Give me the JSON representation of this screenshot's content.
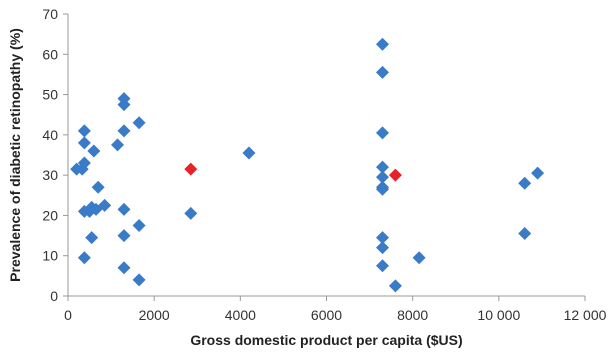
{
  "chart_data": {
    "type": "scatter",
    "title": "",
    "xlabel": "Gross domestic product per capita ($US)",
    "ylabel": "Prevalence of diabetic retinopathy (%)",
    "xlim": [
      0,
      12000
    ],
    "ylim": [
      0,
      70
    ],
    "x_ticks": [
      0,
      2000,
      4000,
      6000,
      8000,
      10000,
      12000
    ],
    "x_tick_labels": [
      "0",
      "2000",
      "4000",
      "6000",
      "8000",
      "10 000",
      "12 000"
    ],
    "y_ticks": [
      0,
      10,
      20,
      30,
      40,
      50,
      60,
      70
    ],
    "y_tick_labels": [
      "0",
      "10",
      "20",
      "30",
      "40",
      "50",
      "60",
      "70"
    ],
    "grid": false,
    "legend": "none",
    "series": [
      {
        "color": "#3a7bc8",
        "marker": "diamond",
        "points": [
          [
            200,
            31.5
          ],
          [
            330,
            31.5
          ],
          [
            380,
            33
          ],
          [
            380,
            38
          ],
          [
            380,
            41
          ],
          [
            380,
            21
          ],
          [
            380,
            9.5
          ],
          [
            500,
            21
          ],
          [
            550,
            22
          ],
          [
            550,
            14.5
          ],
          [
            600,
            36
          ],
          [
            650,
            21.5
          ],
          [
            700,
            27
          ],
          [
            850,
            22.5
          ],
          [
            1150,
            37.5
          ],
          [
            1300,
            49
          ],
          [
            1300,
            47.5
          ],
          [
            1300,
            41
          ],
          [
            1300,
            21.5
          ],
          [
            1300,
            15
          ],
          [
            1300,
            7
          ],
          [
            1650,
            43
          ],
          [
            1650,
            17.5
          ],
          [
            1650,
            4
          ],
          [
            2850,
            20.5
          ],
          [
            4200,
            35.5
          ],
          [
            7300,
            62.5
          ],
          [
            7300,
            55.5
          ],
          [
            7300,
            40.5
          ],
          [
            7300,
            32
          ],
          [
            7300,
            29.5
          ],
          [
            7300,
            27
          ],
          [
            7300,
            26.5
          ],
          [
            7300,
            14.5
          ],
          [
            7300,
            12
          ],
          [
            7300,
            7.5
          ],
          [
            7600,
            2.5
          ],
          [
            8150,
            9.5
          ],
          [
            10600,
            28
          ],
          [
            10600,
            15.5
          ],
          [
            10900,
            30.5
          ]
        ]
      },
      {
        "color": "#e8212a",
        "marker": "diamond",
        "points": [
          [
            2850,
            31.5
          ],
          [
            7600,
            30
          ]
        ]
      }
    ]
  }
}
